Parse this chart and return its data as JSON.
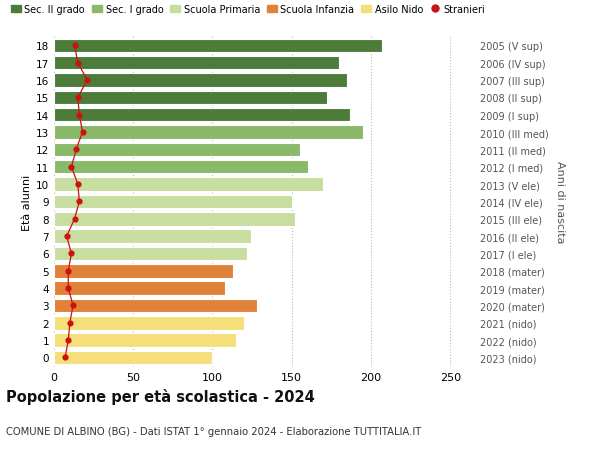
{
  "ages": [
    0,
    1,
    2,
    3,
    4,
    5,
    6,
    7,
    8,
    9,
    10,
    11,
    12,
    13,
    14,
    15,
    16,
    17,
    18
  ],
  "right_labels": [
    "2023 (nido)",
    "2022 (nido)",
    "2021 (nido)",
    "2020 (mater)",
    "2019 (mater)",
    "2018 (mater)",
    "2017 (I ele)",
    "2016 (II ele)",
    "2015 (III ele)",
    "2014 (IV ele)",
    "2013 (V ele)",
    "2012 (I med)",
    "2011 (II med)",
    "2010 (III med)",
    "2009 (I sup)",
    "2008 (II sup)",
    "2007 (III sup)",
    "2006 (IV sup)",
    "2005 (V sup)"
  ],
  "bar_values": [
    100,
    115,
    120,
    128,
    108,
    113,
    122,
    124,
    152,
    150,
    170,
    160,
    155,
    195,
    187,
    172,
    185,
    180,
    207
  ],
  "bar_colors": [
    "#f5df7a",
    "#f5df7a",
    "#f5df7a",
    "#e0823a",
    "#e0823a",
    "#e0823a",
    "#c8dda0",
    "#c8dda0",
    "#c8dda0",
    "#c8dda0",
    "#c8dda0",
    "#8ab96a",
    "#8ab96a",
    "#8ab96a",
    "#4d7c3a",
    "#4d7c3a",
    "#4d7c3a",
    "#4d7c3a",
    "#4d7c3a"
  ],
  "stranieri_values": [
    7,
    9,
    10,
    12,
    9,
    9,
    11,
    8,
    13,
    16,
    15,
    11,
    14,
    18,
    16,
    15,
    21,
    15,
    13
  ],
  "legend_labels": [
    "Sec. II grado",
    "Sec. I grado",
    "Scuola Primaria",
    "Scuola Infanzia",
    "Asilo Nido",
    "Stranieri"
  ],
  "legend_colors": [
    "#4d7c3a",
    "#8ab96a",
    "#c8dda0",
    "#e0823a",
    "#f5df7a",
    "#cc1111"
  ],
  "xlim": [
    0,
    265
  ],
  "xticks": [
    0,
    50,
    100,
    150,
    200,
    250
  ],
  "ylabel_left": "Età alunni",
  "ylabel_right": "Anni di nascita",
  "title_bold": "Popolazione per età scolastica - 2024",
  "subtitle": "COMUNE DI ALBINO (BG) - Dati ISTAT 1° gennaio 2024 - Elaborazione TUTTITALIA.IT",
  "bg_color": "#ffffff",
  "bar_height": 0.78
}
